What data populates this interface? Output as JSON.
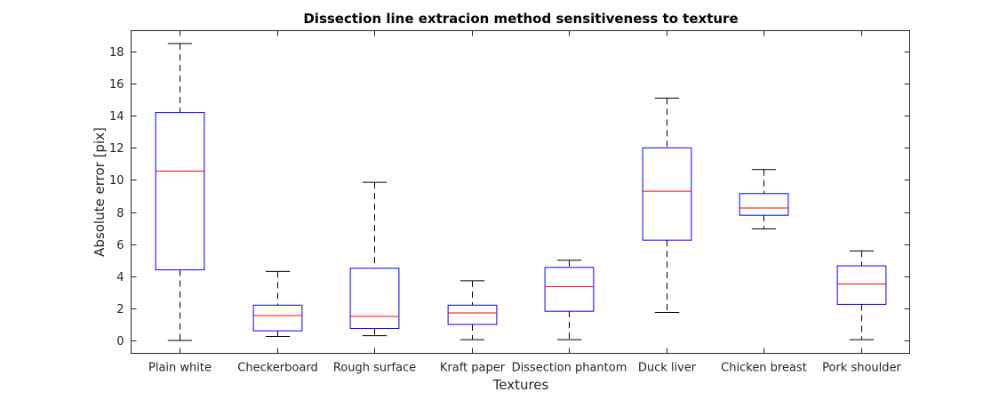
{
  "chart_data": {
    "type": "box",
    "title": "Dissection line extracion method sensitiveness to texture",
    "xlabel": "Textures",
    "ylabel": "Absolute error  [pix]",
    "ylim": [
      -0.8,
      19.3
    ],
    "yticks": [
      0,
      2,
      4,
      6,
      8,
      10,
      12,
      14,
      16,
      18
    ],
    "grid": false,
    "categories": [
      "Plain white",
      "Checkerboard",
      "Rough surface",
      "Kraft paper",
      "Dissection phantom",
      "Duck liver",
      "Chicken breast",
      "Pork shoulder"
    ],
    "boxes": [
      {
        "whisker_low": 0.0,
        "q1": 4.4,
        "median": 10.55,
        "q3": 14.2,
        "whisker_high": 18.5
      },
      {
        "whisker_low": 0.25,
        "q1": 0.6,
        "median": 1.55,
        "q3": 2.2,
        "whisker_high": 4.3
      },
      {
        "whisker_low": 0.3,
        "q1": 0.75,
        "median": 1.5,
        "q3": 4.5,
        "whisker_high": 9.85
      },
      {
        "whisker_low": 0.05,
        "q1": 1.0,
        "median": 1.72,
        "q3": 2.2,
        "whisker_high": 3.72
      },
      {
        "whisker_low": 0.05,
        "q1": 1.82,
        "median": 3.35,
        "q3": 4.55,
        "whisker_high": 5.0
      },
      {
        "whisker_low": 1.75,
        "q1": 6.25,
        "median": 9.3,
        "q3": 12.0,
        "whisker_high": 15.1
      },
      {
        "whisker_low": 6.95,
        "q1": 7.8,
        "median": 8.25,
        "q3": 9.15,
        "whisker_high": 10.65
      },
      {
        "whisker_low": 0.05,
        "q1": 2.25,
        "median": 3.52,
        "q3": 4.65,
        "whisker_high": 5.58
      }
    ],
    "colors": {
      "box": "#0000ff",
      "median": "#ff0000",
      "whisker": "#000000",
      "axes": "#262626"
    }
  }
}
